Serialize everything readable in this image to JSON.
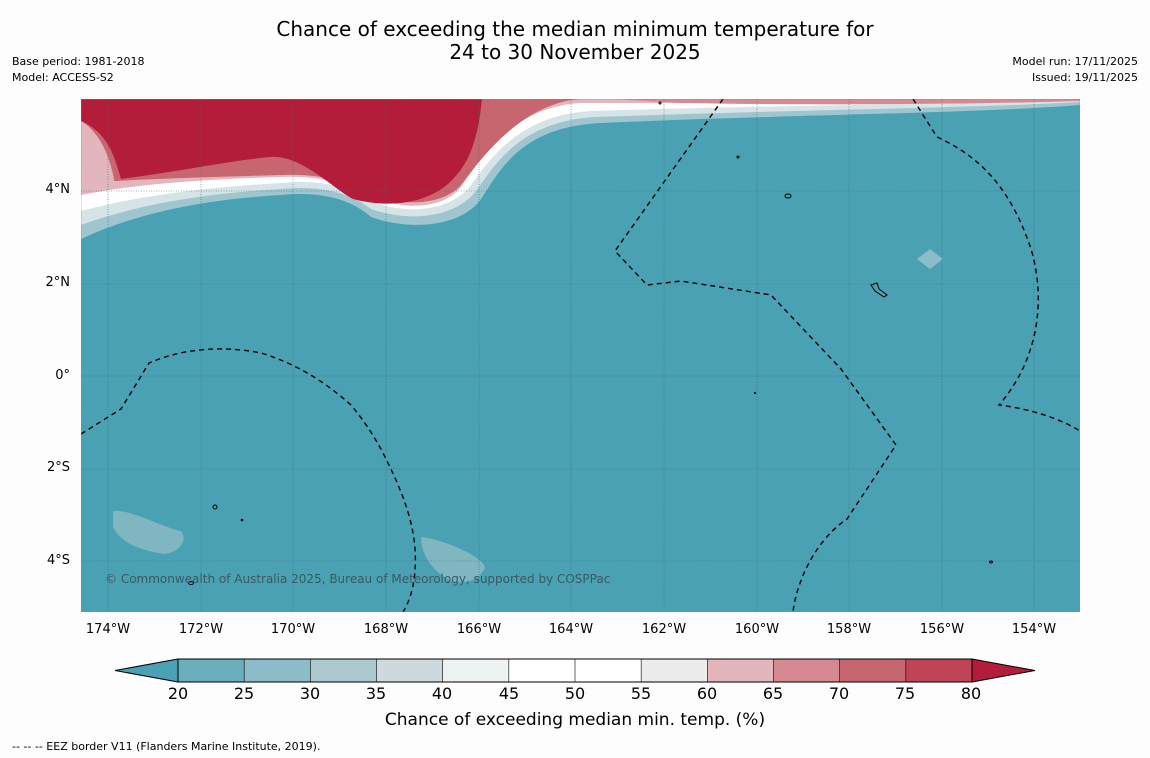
{
  "title": {
    "line1": "Chance of exceeding the median minimum temperature for",
    "line2": "24 to 30 November 2025"
  },
  "meta_left": {
    "base_period": "Base period: 1981-2018",
    "model": "Model: ACCESS-S2"
  },
  "meta_right": {
    "model_run": "Model run: 17/11/2025",
    "issued": "Issued: 19/11/2025"
  },
  "map": {
    "lat_labels": [
      "4°N",
      "2°N",
      "0°",
      "2°S",
      "4°S"
    ],
    "lon_labels": [
      "174°W",
      "172°W",
      "170°W",
      "168°W",
      "166°W",
      "164°W",
      "162°W",
      "160°W",
      "158°W",
      "156°W",
      "154°W"
    ],
    "credit": "© Commonwealth of Australia 2025, Bureau of Meteorology, supported by COSPPac",
    "colors": {
      "ocean_low": "#4aa1b3",
      "high": "#b31d3a"
    }
  },
  "colorbar": {
    "ticks": [
      "20",
      "25",
      "30",
      "35",
      "40",
      "45",
      "50",
      "55",
      "60",
      "65",
      "70",
      "75",
      "80"
    ],
    "colors": [
      "#4aa1b3",
      "#6aadbd",
      "#8bbcc8",
      "#abc8cf",
      "#cdd9dc",
      "#edf2f3",
      "#ffffff",
      "#ffffff",
      "#ececec",
      "#e2b6bc",
      "#d68893",
      "#c86670",
      "#bf4556",
      "#b31d3a"
    ],
    "label": "Chance of exceeding median min. temp. (%)"
  },
  "footnote": "--  --  -- EEZ border V11 (Flanders Marine Institute, 2019)."
}
